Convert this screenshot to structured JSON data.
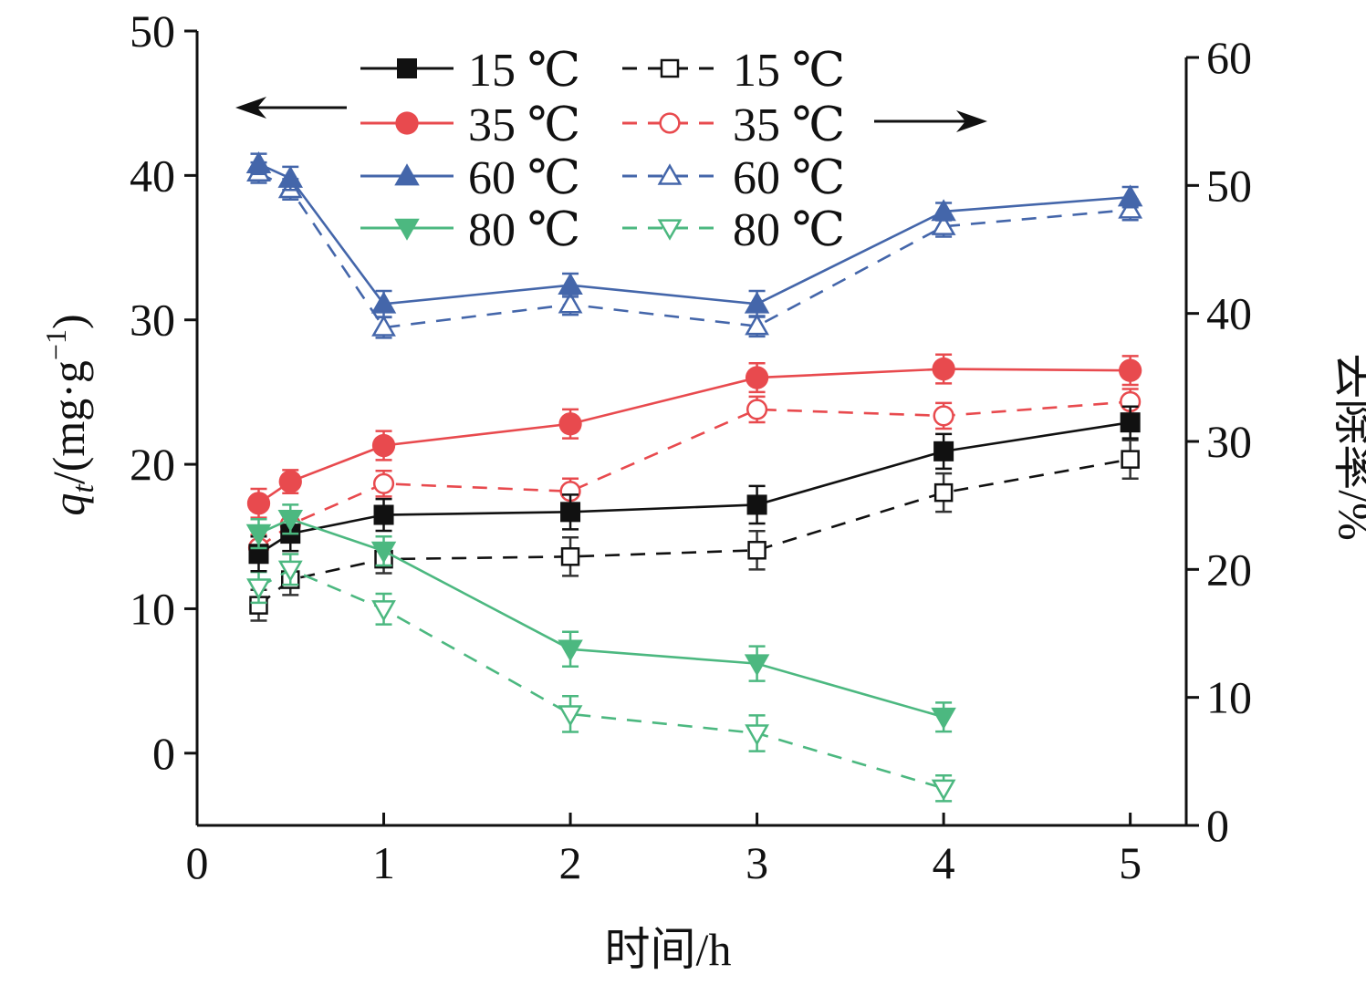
{
  "chart_data": {
    "type": "line",
    "x_axis": {
      "label": "时间/h",
      "range": [
        0,
        5.3
      ],
      "ticks": [
        0,
        1,
        2,
        3,
        4,
        5
      ],
      "tick_labels": [
        "0",
        "1",
        "2",
        "3",
        "4",
        "5"
      ]
    },
    "y_left": {
      "label": "qt/(mg·g⁻¹)",
      "label_parts": {
        "q": "q",
        "sub": "t",
        "rest": "/(mg·g",
        "sup": "−1",
        "close": ")"
      },
      "range": [
        -5,
        50
      ],
      "ticks": [
        0,
        10,
        20,
        30,
        40,
        50
      ],
      "tick_labels": [
        "0",
        "10",
        "20",
        "30",
        "40",
        "50"
      ]
    },
    "y_right": {
      "label": "去除率/%",
      "range": [
        0,
        60
      ],
      "ticks": [
        0,
        10,
        20,
        30,
        40,
        50,
        60
      ],
      "tick_labels": [
        "0",
        "10",
        "20",
        "30",
        "40",
        "50",
        "60"
      ]
    },
    "annotations": {
      "left_arrow": "points to left axis (qt series)",
      "right_arrow": "points to right axis (removal rate series)"
    },
    "series": [
      {
        "name": "15 ℃",
        "axis": "left",
        "style": "solid",
        "marker": "square",
        "filled": true,
        "color": "#111111",
        "x": [
          0.33,
          0.5,
          1,
          2,
          3,
          4,
          5
        ],
        "y": [
          13.8,
          15.2,
          16.5,
          16.7,
          17.2,
          20.9,
          22.9
        ],
        "err": [
          1.2,
          1.2,
          1.1,
          1.2,
          1.3,
          1.2,
          1.1
        ]
      },
      {
        "name": "35 ℃",
        "axis": "left",
        "style": "solid",
        "marker": "circle",
        "filled": true,
        "color": "#E84A4E",
        "x": [
          0.33,
          0.5,
          1,
          2,
          3,
          4,
          5
        ],
        "y": [
          17.3,
          18.8,
          21.3,
          22.8,
          26.0,
          26.6,
          26.5
        ],
        "err": [
          1.0,
          0.8,
          1.0,
          1.0,
          1.0,
          1.0,
          1.0
        ]
      },
      {
        "name": "60 ℃",
        "axis": "left",
        "style": "solid",
        "marker": "triangle-up",
        "filled": true,
        "color": "#4466AA",
        "x": [
          0.33,
          0.5,
          1,
          2,
          3,
          4,
          5
        ],
        "y": [
          40.8,
          39.8,
          31.1,
          32.4,
          31.1,
          37.5,
          38.5
        ],
        "err": [
          0.7,
          0.8,
          0.9,
          0.8,
          0.9,
          0.6,
          0.7
        ]
      },
      {
        "name": "80 ℃",
        "axis": "left",
        "style": "solid",
        "marker": "triangle-down",
        "filled": true,
        "color": "#4CB880",
        "x": [
          0.33,
          0.5,
          1,
          2,
          3,
          4
        ],
        "y": [
          15.2,
          16.2,
          14.0,
          7.2,
          6.2,
          2.5
        ],
        "err": [
          1.0,
          1.0,
          1.0,
          1.2,
          1.2,
          1.0
        ]
      },
      {
        "name": "15 ℃",
        "axis": "right",
        "style": "dashed",
        "marker": "square",
        "filled": false,
        "color": "#111111",
        "x": [
          0.33,
          0.5,
          1,
          2,
          3,
          4,
          5
        ],
        "y": [
          17.2,
          19.2,
          20.8,
          21.0,
          21.5,
          26.0,
          28.6
        ],
        "err": [
          1.2,
          1.2,
          1.1,
          1.5,
          1.5,
          1.5,
          1.5
        ]
      },
      {
        "name": "35 ℃",
        "axis": "right",
        "style": "dashed",
        "marker": "circle",
        "filled": false,
        "color": "#E84A4E",
        "x": [
          0.33,
          0.5,
          1,
          2,
          3,
          4,
          5
        ],
        "y": [
          21.7,
          23.5,
          26.7,
          26.1,
          32.5,
          32.0,
          33.1
        ],
        "err": [
          1.0,
          1.0,
          1.0,
          1.0,
          1.0,
          1.0,
          1.0
        ]
      },
      {
        "name": "60 ℃",
        "axis": "right",
        "style": "dashed",
        "marker": "triangle-up",
        "filled": false,
        "color": "#4466AA",
        "x": [
          0.33,
          0.5,
          1,
          2,
          3,
          4,
          5
        ],
        "y": [
          51.0,
          49.7,
          38.9,
          40.7,
          39.0,
          46.8,
          48.1
        ],
        "err": [
          0.8,
          0.8,
          0.8,
          0.8,
          0.8,
          0.8,
          0.8
        ]
      },
      {
        "name": "80 ℃",
        "axis": "right",
        "style": "dashed",
        "marker": "triangle-down",
        "filled": false,
        "color": "#4CB880",
        "x": [
          0.33,
          0.5,
          1,
          2,
          3,
          4
        ],
        "y": [
          18.6,
          20.0,
          16.9,
          8.7,
          7.2,
          2.9
        ],
        "err": [
          1.2,
          1.2,
          1.2,
          1.4,
          1.4,
          1.0
        ]
      }
    ],
    "legend": {
      "placement": "top-center",
      "columns": 2,
      "solid_labels": [
        "15 ℃",
        "35 ℃",
        "60 ℃",
        "80 ℃"
      ],
      "dashed_labels": [
        "15 ℃",
        "35 ℃",
        "60 ℃",
        "80 ℃"
      ]
    },
    "grid": false
  }
}
